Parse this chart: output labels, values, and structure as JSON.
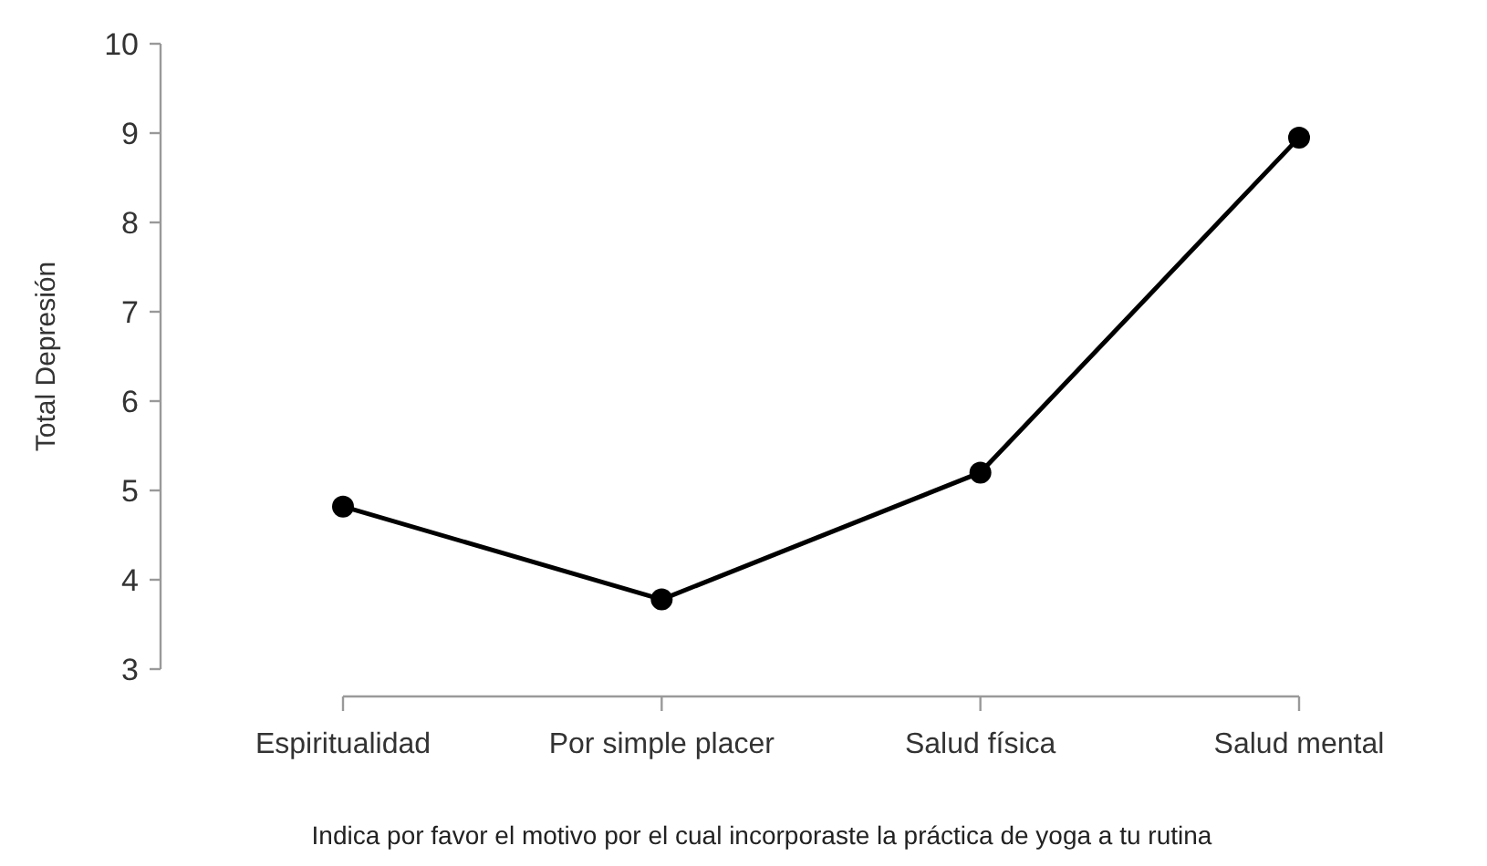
{
  "chart_data": {
    "type": "line",
    "xlabel": "Indica por favor el motivo por el cual incorporaste la práctica de yoga a tu rutina",
    "ylabel": "Total Depresión",
    "categories": [
      "Espiritualidad",
      "Por simple placer",
      "Salud física",
      "Salud mental"
    ],
    "series": [
      {
        "color": "#000000",
        "values": [
          4.82,
          3.78,
          5.2,
          8.95
        ]
      }
    ],
    "ylim": [
      3,
      10
    ],
    "yticks": [
      3,
      4,
      5,
      6,
      7,
      8,
      9,
      10
    ],
    "marker": "circle",
    "line_style": "solid"
  }
}
